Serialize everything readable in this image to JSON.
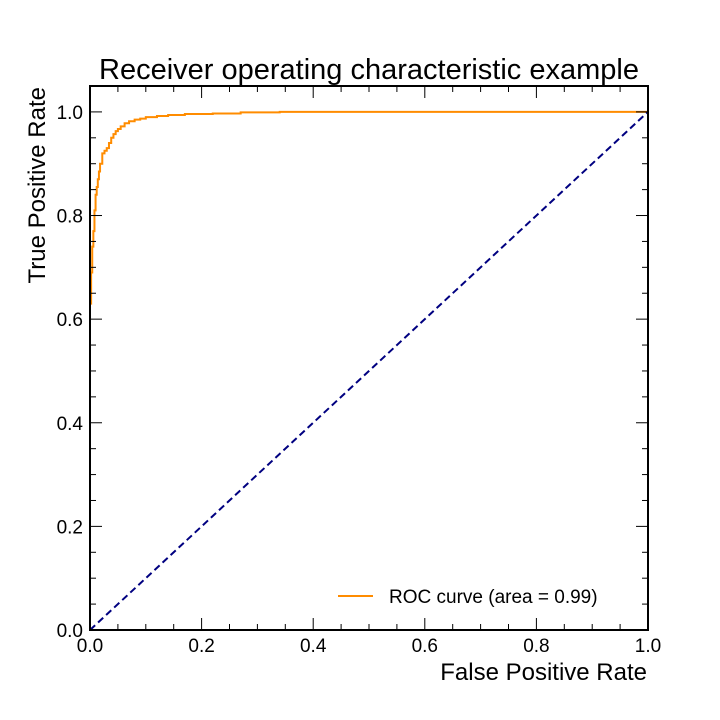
{
  "chart_data": {
    "type": "line",
    "title": "Receiver operating characteristic example",
    "xlabel": "False Positive Rate",
    "ylabel": "True Positive Rate",
    "xlim": [
      0.0,
      1.0
    ],
    "ylim": [
      0.0,
      1.05
    ],
    "xticks": [
      "0.0",
      "0.2",
      "0.4",
      "0.6",
      "0.8",
      "1.0"
    ],
    "yticks": [
      "0.0",
      "0.2",
      "0.4",
      "0.6",
      "0.8",
      "1.0"
    ],
    "grid": false,
    "legend_position": "lower-right",
    "series": [
      {
        "name": "ROC curve (area = 0.99)",
        "color": "#ff8c00",
        "style": "solid",
        "x": [
          0.0,
          0.0,
          0.002,
          0.002,
          0.004,
          0.004,
          0.006,
          0.006,
          0.008,
          0.008,
          0.01,
          0.01,
          0.012,
          0.012,
          0.014,
          0.014,
          0.016,
          0.016,
          0.018,
          0.018,
          0.022,
          0.022,
          0.026,
          0.026,
          0.03,
          0.03,
          0.034,
          0.034,
          0.038,
          0.038,
          0.042,
          0.042,
          0.046,
          0.046,
          0.05,
          0.05,
          0.055,
          0.055,
          0.062,
          0.062,
          0.07,
          0.07,
          0.08,
          0.08,
          0.09,
          0.09,
          0.1,
          0.1,
          0.12,
          0.12,
          0.14,
          0.14,
          0.17,
          0.17,
          0.22,
          0.22,
          0.27,
          0.27,
          0.34,
          0.34,
          1.0
        ],
        "y": [
          0.0,
          0.63,
          0.63,
          0.69,
          0.69,
          0.74,
          0.74,
          0.77,
          0.77,
          0.81,
          0.81,
          0.84,
          0.84,
          0.855,
          0.855,
          0.87,
          0.87,
          0.885,
          0.885,
          0.9,
          0.9,
          0.92,
          0.92,
          0.925,
          0.925,
          0.93,
          0.93,
          0.94,
          0.94,
          0.95,
          0.95,
          0.957,
          0.957,
          0.963,
          0.963,
          0.967,
          0.967,
          0.972,
          0.972,
          0.978,
          0.978,
          0.982,
          0.982,
          0.985,
          0.985,
          0.987,
          0.987,
          0.99,
          0.99,
          0.992,
          0.992,
          0.994,
          0.994,
          0.996,
          0.996,
          0.997,
          0.997,
          0.999,
          0.999,
          1.0,
          1.0
        ]
      },
      {
        "color": "#000080",
        "style": "dashed",
        "x": [
          0.0,
          1.0
        ],
        "y": [
          0.0,
          1.0
        ]
      }
    ]
  }
}
